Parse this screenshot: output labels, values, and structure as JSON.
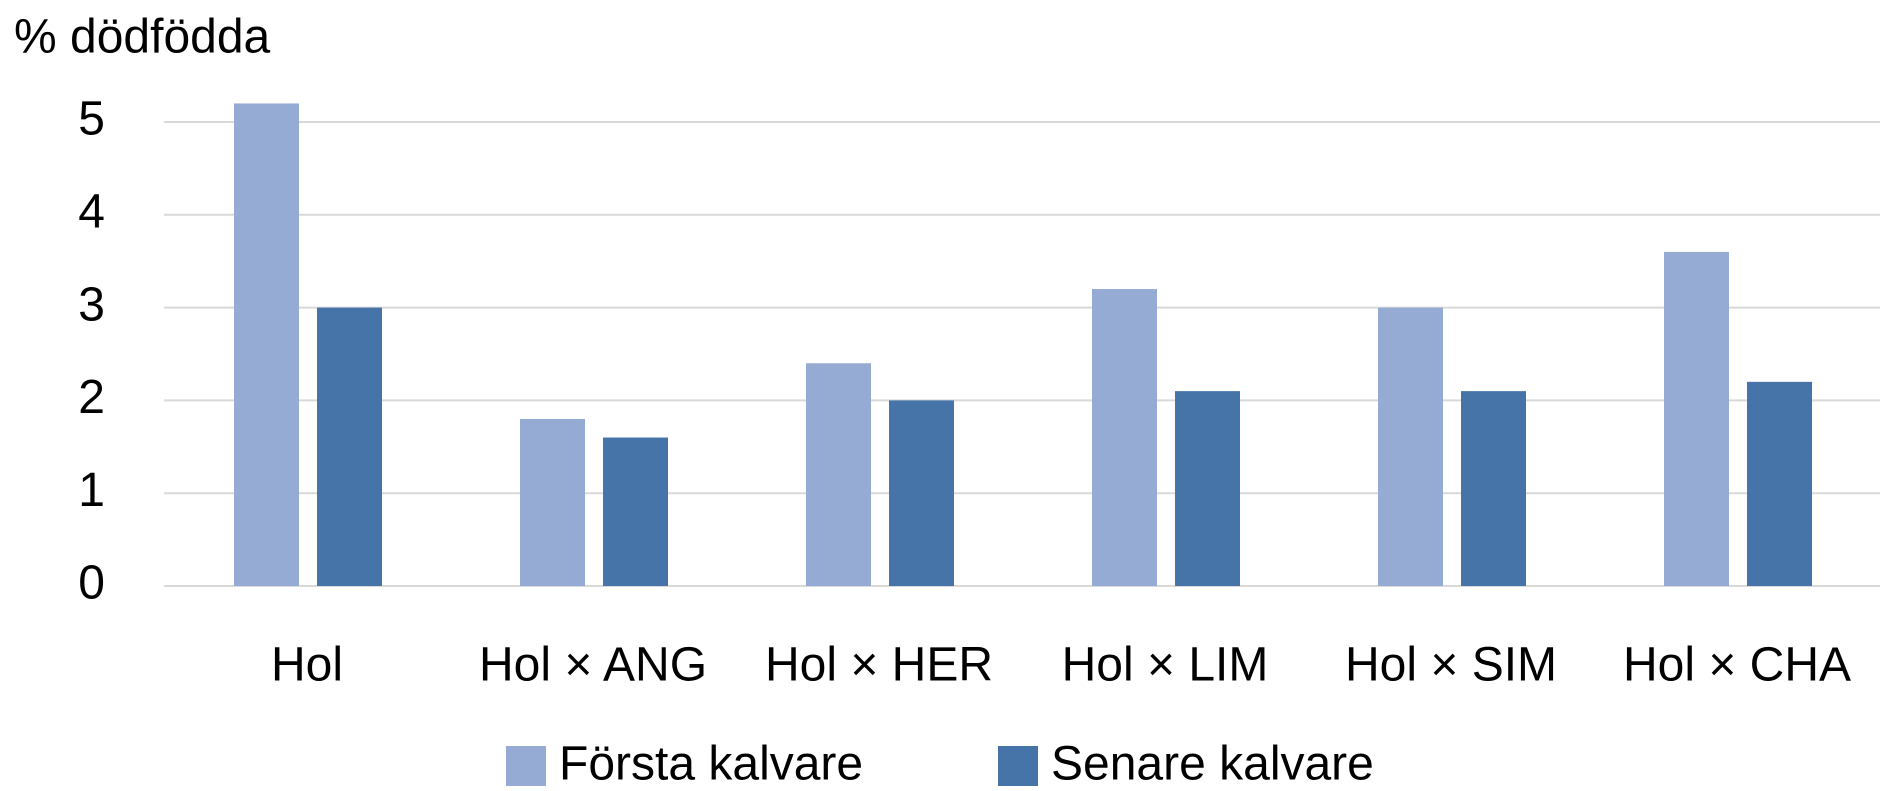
{
  "chart_data": {
    "type": "bar",
    "title": "% dödfödda",
    "categories": [
      "Hol",
      "Hol × ANG",
      "Hol × HER",
      "Hol × LIM",
      "Hol × SIM",
      "Hol × CHA"
    ],
    "series": [
      {
        "name": "Första kalvare",
        "color": "#95abd3",
        "values": [
          5.2,
          1.8,
          2.4,
          3.2,
          3.0,
          3.6
        ]
      },
      {
        "name": "Senare kalvare",
        "color": "#4674a8",
        "values": [
          3.0,
          1.6,
          2.0,
          2.1,
          2.1,
          2.2
        ]
      }
    ],
    "ylim": [
      0,
      5
    ],
    "yticks": [
      0,
      1,
      2,
      3,
      4,
      5
    ],
    "grid": true,
    "legend": "bottom"
  }
}
